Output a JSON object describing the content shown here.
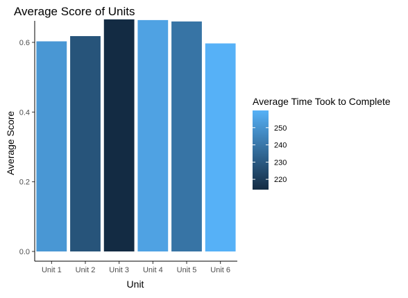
{
  "chart_data": {
    "type": "bar",
    "title": "Average Score of Units",
    "xlabel": "Unit",
    "ylabel": "Average Score",
    "categories": [
      "Unit 1",
      "Unit 2",
      "Unit 3",
      "Unit 4",
      "Unit 5",
      "Unit 6"
    ],
    "values": [
      0.603,
      0.618,
      0.666,
      0.664,
      0.66,
      0.597
    ],
    "fill_values": [
      251,
      228,
      214,
      255,
      239,
      260
    ],
    "ylim": [
      0,
      0.7
    ],
    "yticks": [
      0.0,
      0.2,
      0.4,
      0.6
    ],
    "ytick_labels": [
      "0.0",
      "0.2",
      "0.4",
      "0.6"
    ],
    "grid": false,
    "legend": {
      "title": "Average Time Took to Complete",
      "position": "right",
      "type": "colorbar",
      "range": [
        214,
        260
      ],
      "ticks": [
        220,
        230,
        240,
        250
      ],
      "tick_labels": [
        "220",
        "230",
        "240",
        "250"
      ],
      "color_low": "#132B43",
      "color_high": "#56B1F7"
    }
  }
}
